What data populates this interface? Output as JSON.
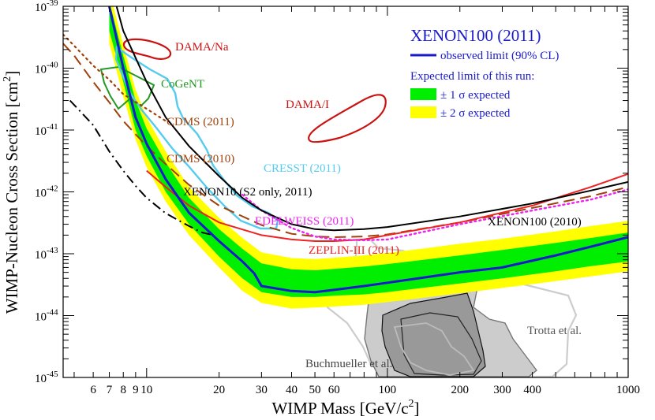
{
  "chart_data": {
    "type": "line",
    "title": "XENON100 (2011)",
    "xlabel_main": "WIMP Mass [GeV/c",
    "xlabel_sup": "2",
    "xlabel_end": "]",
    "ylabel_main": "WIMP-Nucleon Cross Section [cm",
    "ylabel_sup": "2",
    "ylabel_end": "]",
    "xscale": "log",
    "yscale": "log",
    "xlim": [
      4.5,
      1000
    ],
    "ylim": [
      1e-45,
      1e-39
    ],
    "x_ticks": [
      {
        "value": 6,
        "label": "6"
      },
      {
        "value": 7,
        "label": "7"
      },
      {
        "value": 8,
        "label": "8"
      },
      {
        "value": 9,
        "label": "9"
      },
      {
        "value": 10,
        "label": "10"
      },
      {
        "value": 20,
        "label": "20"
      },
      {
        "value": 30,
        "label": "30"
      },
      {
        "value": 40,
        "label": "40"
      },
      {
        "value": 50,
        "label": "50"
      },
      {
        "value": 60,
        "label": "60"
      },
      {
        "value": 100,
        "label": "100"
      },
      {
        "value": 200,
        "label": "200"
      },
      {
        "value": 300,
        "label": "300"
      },
      {
        "value": 400,
        "label": "400"
      },
      {
        "value": 1000,
        "label": "1000"
      }
    ],
    "y_ticks": [
      {
        "exp": -39,
        "base": "10",
        "sup": "-39"
      },
      {
        "exp": -40,
        "base": "10",
        "sup": "-40"
      },
      {
        "exp": -41,
        "base": "10",
        "sup": "-41"
      },
      {
        "exp": -42,
        "base": "10",
        "sup": "-42"
      },
      {
        "exp": -43,
        "base": "10",
        "sup": "-43"
      },
      {
        "exp": -44,
        "base": "10",
        "sup": "-44"
      },
      {
        "exp": -45,
        "base": "10",
        "sup": "-45"
      }
    ],
    "legend": {
      "position": "top-right",
      "title": "XENON100 (2011)",
      "observed_label": "observed limit (90% CL)",
      "expected_heading": "Expected limit of this run:",
      "band1_label": "± 1 σ expected",
      "band2_label": "± 2 σ expected"
    },
    "colors": {
      "observed": "#1a1acc",
      "band1": "#00ee00",
      "band2": "#ffff00",
      "dama": "#cc1111",
      "cogent": "#229922",
      "cdms": "#a0400a",
      "cresst": "#55ccee",
      "edelweiss": "#ee22ee",
      "zeplin": "#ee2222",
      "xenon10": "#000000",
      "xenon100_2010": "#000000",
      "susy_dark": "#555555",
      "susy_light": "#cccccc",
      "legend_text": "#1a1acc"
    },
    "series": [
      {
        "name": "observed limit (90% CL)",
        "points": [
          [
            7,
            1e-39
          ],
          [
            8,
            1e-40
          ],
          [
            9,
            1.6e-41
          ],
          [
            10,
            6e-42
          ],
          [
            12,
            1.6e-42
          ],
          [
            15,
            4.6e-43
          ],
          [
            20,
            1.6e-43
          ],
          [
            25,
            7.5e-44
          ],
          [
            28,
            4.8e-44
          ],
          [
            30,
            3e-44
          ],
          [
            40,
            2.5e-44
          ],
          [
            50,
            2.4e-44
          ],
          [
            60,
            2.6e-44
          ],
          [
            80,
            3e-44
          ],
          [
            100,
            3.4e-44
          ],
          [
            200,
            5e-44
          ],
          [
            300,
            6e-44
          ],
          [
            500,
            9.4e-44
          ],
          [
            700,
            1.3e-43
          ],
          [
            1000,
            1.85e-43
          ]
        ]
      },
      {
        "name": "± 2 σ expected (lower)",
        "points": [
          [
            7,
            2.5e-40
          ],
          [
            8,
            3.5e-41
          ],
          [
            9,
            7e-42
          ],
          [
            10,
            2.5e-42
          ],
          [
            12,
            7e-43
          ],
          [
            15,
            2e-43
          ],
          [
            20,
            6e-44
          ],
          [
            25,
            2.5e-44
          ],
          [
            30,
            1.6e-44
          ],
          [
            40,
            1.3e-44
          ],
          [
            50,
            1.35e-44
          ],
          [
            60,
            1.4e-44
          ],
          [
            80,
            1.5e-44
          ],
          [
            100,
            1.65e-44
          ],
          [
            150,
            2e-44
          ],
          [
            200,
            2.3e-44
          ],
          [
            300,
            2.8e-44
          ],
          [
            500,
            3.6e-44
          ],
          [
            700,
            4.3e-44
          ],
          [
            1000,
            5.2e-44
          ]
        ]
      },
      {
        "name": "± 1 σ expected (lower)",
        "points": [
          [
            7,
            4e-40
          ],
          [
            8,
            6e-41
          ],
          [
            9,
            1e-41
          ],
          [
            10,
            3.8e-42
          ],
          [
            12,
            1e-42
          ],
          [
            15,
            3e-43
          ],
          [
            20,
            9e-44
          ],
          [
            25,
            4e-44
          ],
          [
            30,
            2.4e-44
          ],
          [
            40,
            2e-44
          ],
          [
            50,
            2e-44
          ],
          [
            60,
            2.1e-44
          ],
          [
            80,
            2.2e-44
          ],
          [
            100,
            2.4e-44
          ],
          [
            150,
            2.9e-44
          ],
          [
            200,
            3.3e-44
          ],
          [
            300,
            4e-44
          ],
          [
            500,
            5.2e-44
          ],
          [
            700,
            6.3e-44
          ],
          [
            1000,
            7.5e-44
          ]
        ]
      },
      {
        "name": "± 1 σ expected (upper)",
        "points": [
          [
            7,
            1.2e-39
          ],
          [
            8,
            1.6e-40
          ],
          [
            9,
            3e-41
          ],
          [
            10,
            1.05e-41
          ],
          [
            12,
            3e-42
          ],
          [
            15,
            8e-43
          ],
          [
            20,
            2.5e-43
          ],
          [
            25,
            1.2e-43
          ],
          [
            30,
            7e-44
          ],
          [
            40,
            5.6e-44
          ],
          [
            50,
            5.4e-44
          ],
          [
            60,
            5.7e-44
          ],
          [
            80,
            6.2e-44
          ],
          [
            100,
            6.8e-44
          ],
          [
            150,
            8.2e-44
          ],
          [
            200,
            9.4e-44
          ],
          [
            300,
            1.15e-43
          ],
          [
            500,
            1.5e-43
          ],
          [
            700,
            1.8e-43
          ],
          [
            1000,
            2.2e-43
          ]
        ]
      },
      {
        "name": "± 2 σ expected (upper)",
        "points": [
          [
            7,
            1.8e-39
          ],
          [
            8,
            2.4e-40
          ],
          [
            9,
            4.5e-41
          ],
          [
            10,
            1.6e-41
          ],
          [
            12,
            4.5e-42
          ],
          [
            15,
            1.2e-42
          ],
          [
            20,
            3.8e-43
          ],
          [
            25,
            1.8e-43
          ],
          [
            30,
            1.05e-43
          ],
          [
            40,
            8.5e-44
          ],
          [
            50,
            8.2e-44
          ],
          [
            60,
            8.6e-44
          ],
          [
            80,
            9.4e-44
          ],
          [
            100,
            1.03e-43
          ],
          [
            150,
            1.25e-43
          ],
          [
            200,
            1.45e-43
          ],
          [
            300,
            1.75e-43
          ],
          [
            500,
            2.3e-43
          ],
          [
            700,
            2.8e-43
          ],
          [
            1000,
            3.4e-43
          ]
        ]
      },
      {
        "name": "XENON100 (2010)",
        "points": [
          [
            7.5,
            1e-39
          ],
          [
            8,
            4e-40
          ],
          [
            10,
            6e-41
          ],
          [
            12,
            1.6e-41
          ],
          [
            15,
            5.5e-42
          ],
          [
            20,
            1.8e-42
          ],
          [
            25,
            8e-43
          ],
          [
            30,
            5e-43
          ],
          [
            40,
            3e-43
          ],
          [
            50,
            2.5e-43
          ],
          [
            60,
            2.4e-43
          ],
          [
            80,
            2.5e-43
          ],
          [
            100,
            2.7e-43
          ],
          [
            200,
            4e-43
          ],
          [
            400,
            6.5e-43
          ],
          [
            700,
            1.05e-42
          ],
          [
            1000,
            1.45e-42
          ]
        ]
      },
      {
        "name": "XENON10 (S2 only, 2011)",
        "points": [
          [
            4.8,
            3e-41
          ],
          [
            6,
            1.2e-41
          ],
          [
            7,
            4.5e-42
          ],
          [
            8,
            2.2e-42
          ],
          [
            9,
            1.25e-42
          ],
          [
            10,
            8e-43
          ],
          [
            12,
            4.5e-43
          ],
          [
            15,
            2.8e-43
          ],
          [
            17,
            2.2e-43
          ],
          [
            19,
            2e-43
          ]
        ]
      },
      {
        "name": "ZEPLIN-III (2011)",
        "points": [
          [
            10,
            2.2e-42
          ],
          [
            12,
            1.2e-42
          ],
          [
            15,
            6e-43
          ],
          [
            20,
            3.2e-43
          ],
          [
            30,
            2e-43
          ],
          [
            40,
            1.7e-43
          ],
          [
            50,
            1.6e-43
          ],
          [
            60,
            1.6e-43
          ],
          [
            80,
            1.7e-43
          ],
          [
            100,
            2e-43
          ],
          [
            200,
            3.2e-43
          ],
          [
            400,
            6e-43
          ],
          [
            700,
            1.2e-42
          ],
          [
            1000,
            1.95e-42
          ]
        ]
      },
      {
        "name": "EDELWEISS (2011)",
        "points": [
          [
            25,
            9e-43
          ],
          [
            30,
            5e-43
          ],
          [
            40,
            2.6e-43
          ],
          [
            50,
            1.9e-43
          ],
          [
            60,
            1.7e-43
          ],
          [
            80,
            1.65e-43
          ],
          [
            100,
            1.7e-43
          ],
          [
            200,
            3e-43
          ],
          [
            400,
            5e-43
          ],
          [
            700,
            7.5e-43
          ],
          [
            1000,
            1.1e-42
          ]
        ]
      },
      {
        "name": "CDMS (2010)",
        "points": [
          [
            4.5,
            2.5e-40
          ],
          [
            5,
            1.6e-40
          ],
          [
            6,
            6e-41
          ],
          [
            7,
            2.8e-41
          ],
          [
            8,
            1.4e-41
          ],
          [
            10,
            5.5e-42
          ],
          [
            12,
            2.8e-42
          ],
          [
            15,
            1.3e-42
          ],
          [
            20,
            6e-43
          ],
          [
            30,
            2.9e-43
          ],
          [
            40,
            2.1e-43
          ],
          [
            50,
            1.9e-43
          ],
          [
            60,
            1.85e-43
          ],
          [
            80,
            1.9e-43
          ],
          [
            100,
            2.05e-43
          ],
          [
            200,
            3.2e-43
          ],
          [
            400,
            5.5e-43
          ],
          [
            700,
            8.5e-43
          ],
          [
            1000,
            1.2e-42
          ]
        ]
      },
      {
        "name": "CDMS (2011)",
        "points": [
          [
            4.5,
            3.5e-40
          ],
          [
            5,
            2.3e-40
          ],
          [
            6,
            1.1e-40
          ],
          [
            7,
            6.5e-41
          ],
          [
            8,
            3.8e-41
          ],
          [
            10,
            2.2e-41
          ],
          [
            12,
            1.4e-41
          ]
        ]
      }
    ],
    "regions": [
      {
        "name": "DAMA/Na",
        "label": "DAMA/Na"
      },
      {
        "name": "DAMA/I",
        "label": "DAMA/I"
      },
      {
        "name": "CoGeNT",
        "label": "CoGeNT"
      },
      {
        "name": "CRESST (2011)",
        "label": "CRESST (2011)"
      },
      {
        "name": "Trotta et al.",
        "label": "Trotta et al."
      },
      {
        "name": "Buchmueller et al.",
        "label": "Buchmueller et al."
      }
    ],
    "annotations": {
      "dama_na": "DAMA/Na",
      "cogent": "CoGeNT",
      "cdms_2011": "CDMS (2011)",
      "cdms_2010": "CDMS (2010)",
      "dama_i": "DAMA/I",
      "cresst": "CRESST (2011)",
      "xenon10": "XENON10 (S2 only, 2011)",
      "edelweiss": "EDELWEISS (2011)",
      "zeplin": "ZEPLIN-III (2011)",
      "xenon100_2010": "XENON100 (2010)",
      "trotta": "Trotta et al.",
      "buchmueller": "Buchmueller et al."
    }
  }
}
